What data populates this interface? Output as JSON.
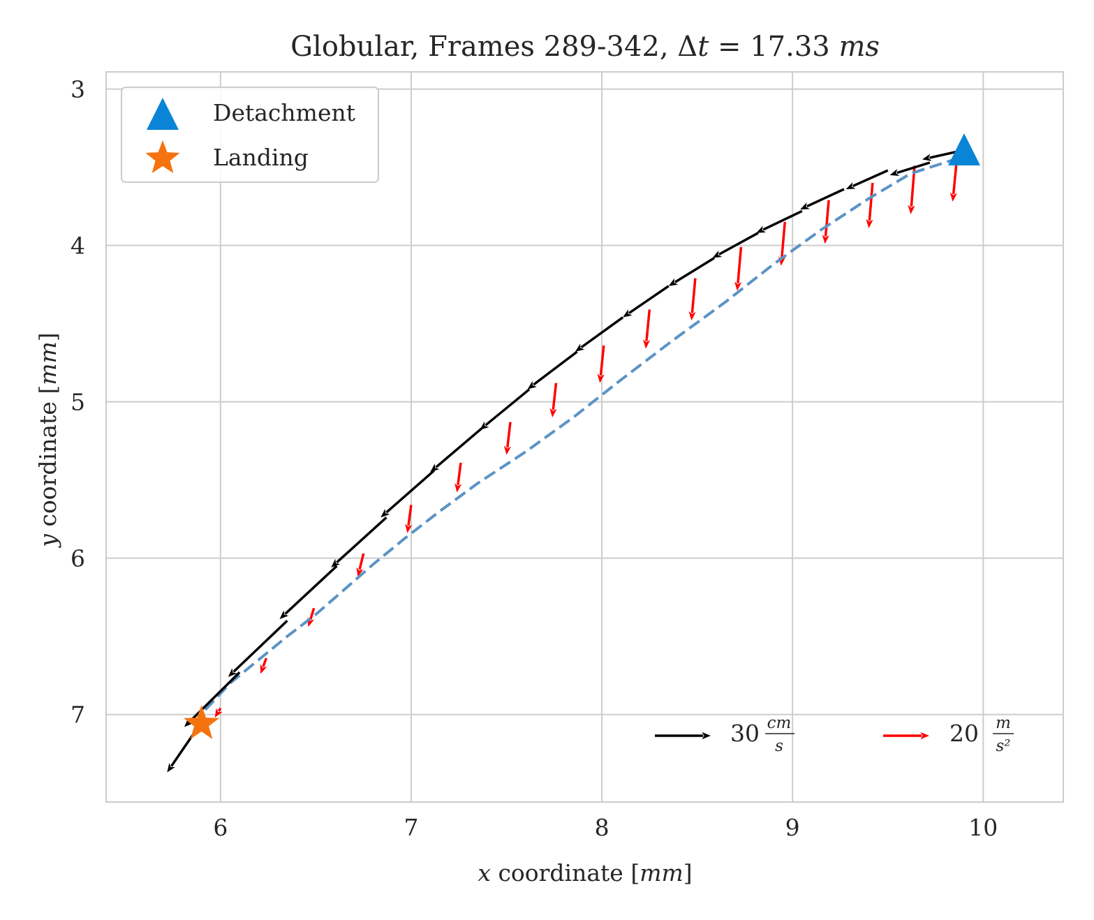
{
  "chart_data": {
    "type": "scatter",
    "title": {
      "prefix": "Globular, Frames 289-342, ",
      "delta": "Δ",
      "t": "t",
      "eq": " = 17.33 ",
      "unit": "ms"
    },
    "xlabel": {
      "var": "x",
      "text": " coordinate [",
      "unit": "mm",
      "close": "]"
    },
    "ylabel": {
      "var": "y",
      "text": " coordinate [",
      "unit": "mm",
      "close": "]"
    },
    "xlim": [
      5.4,
      10.42
    ],
    "ylim": [
      2.89,
      7.56
    ],
    "y_inverted": true,
    "grid": true,
    "xticks": [
      6,
      7,
      8,
      9,
      10
    ],
    "yticks": [
      3,
      4,
      5,
      6,
      7
    ],
    "legend": {
      "placement": "top-left",
      "entries": [
        {
          "label": "Detachment",
          "marker": "triangle",
          "color": "#0a84d6"
        },
        {
          "label": "Landing",
          "marker": "star",
          "color": "#f5730f"
        }
      ]
    },
    "trajectory_fit": {
      "style": "dashed",
      "color": "#5b93c5",
      "x": [
        5.92,
        6.05,
        6.2,
        6.35,
        6.5,
        6.65,
        6.8,
        6.97,
        7.15,
        7.35,
        7.6,
        7.85,
        8.1,
        8.38,
        8.65,
        8.9,
        9.15,
        9.4,
        9.62,
        9.85
      ],
      "y": [
        6.97,
        6.8,
        6.65,
        6.5,
        6.36,
        6.2,
        6.04,
        5.87,
        5.7,
        5.52,
        5.32,
        5.1,
        4.86,
        4.6,
        4.36,
        4.12,
        3.9,
        3.7,
        3.54,
        3.45
      ]
    },
    "positions": {
      "x": [
        9.85,
        9.64,
        9.42,
        9.19,
        8.96,
        8.73,
        8.49,
        8.25,
        8.01,
        7.76,
        7.52,
        7.26,
        7.0,
        6.75,
        6.49,
        6.24,
        6.0
      ],
      "y": [
        3.42,
        3.47,
        3.59,
        3.71,
        3.85,
        4.01,
        4.21,
        4.41,
        4.64,
        4.88,
        5.13,
        5.39,
        5.66,
        5.97,
        6.32,
        6.64,
        6.96
      ]
    },
    "detachment": {
      "x": 9.9,
      "y": 3.39
    },
    "landing": {
      "x": 5.9,
      "y": 7.06
    },
    "velocity_vectors": {
      "color": "#000000",
      "scale_label": {
        "value": "30",
        "num": "cm",
        "den": "s"
      },
      "x": [
        9.9,
        9.72,
        9.5,
        9.27,
        9.05,
        8.82,
        8.59,
        8.35,
        8.11,
        7.87,
        7.62,
        7.37,
        7.12,
        6.87,
        6.61,
        6.35,
        6.1,
        5.9
      ],
      "y": [
        3.39,
        3.47,
        3.52,
        3.64,
        3.78,
        3.92,
        4.08,
        4.26,
        4.46,
        4.68,
        4.92,
        5.17,
        5.44,
        5.74,
        6.05,
        6.4,
        6.73,
        7.05
      ],
      "dx": [
        -0.22,
        -0.21,
        -0.22,
        -0.23,
        -0.24,
        -0.24,
        -0.24,
        -0.24,
        -0.25,
        -0.26,
        -0.26,
        -0.27,
        -0.28,
        -0.29,
        -0.3,
        -0.31,
        -0.29,
        -0.18
      ],
      "dy": [
        0.06,
        0.08,
        0.12,
        0.13,
        0.14,
        0.16,
        0.18,
        0.2,
        0.22,
        0.24,
        0.26,
        0.28,
        0.3,
        0.32,
        0.34,
        0.36,
        0.35,
        0.32
      ]
    },
    "acceleration_vectors": {
      "color": "#ff0000",
      "scale_label": {
        "value": "20 ",
        "num": "m",
        "den": "s²"
      },
      "x": [
        9.86,
        9.64,
        9.42,
        9.19,
        8.96,
        8.73,
        8.49,
        8.25,
        8.01,
        7.76,
        7.52,
        7.26,
        7.0,
        6.75,
        6.49,
        6.24,
        6.0
      ],
      "y": [
        3.47,
        3.49,
        3.6,
        3.71,
        3.85,
        4.01,
        4.21,
        4.41,
        4.64,
        4.88,
        5.13,
        5.39,
        5.66,
        5.97,
        6.32,
        6.64,
        6.96
      ],
      "dx": [
        -0.02,
        -0.02,
        -0.02,
        -0.02,
        -0.02,
        -0.02,
        -0.02,
        -0.02,
        -0.02,
        -0.02,
        -0.02,
        -0.02,
        -0.02,
        -0.03,
        -0.03,
        -0.03,
        -0.03
      ],
      "dy": [
        0.25,
        0.31,
        0.29,
        0.28,
        0.28,
        0.28,
        0.27,
        0.25,
        0.24,
        0.22,
        0.21,
        0.19,
        0.18,
        0.15,
        0.12,
        0.1,
        0.06
      ]
    }
  }
}
